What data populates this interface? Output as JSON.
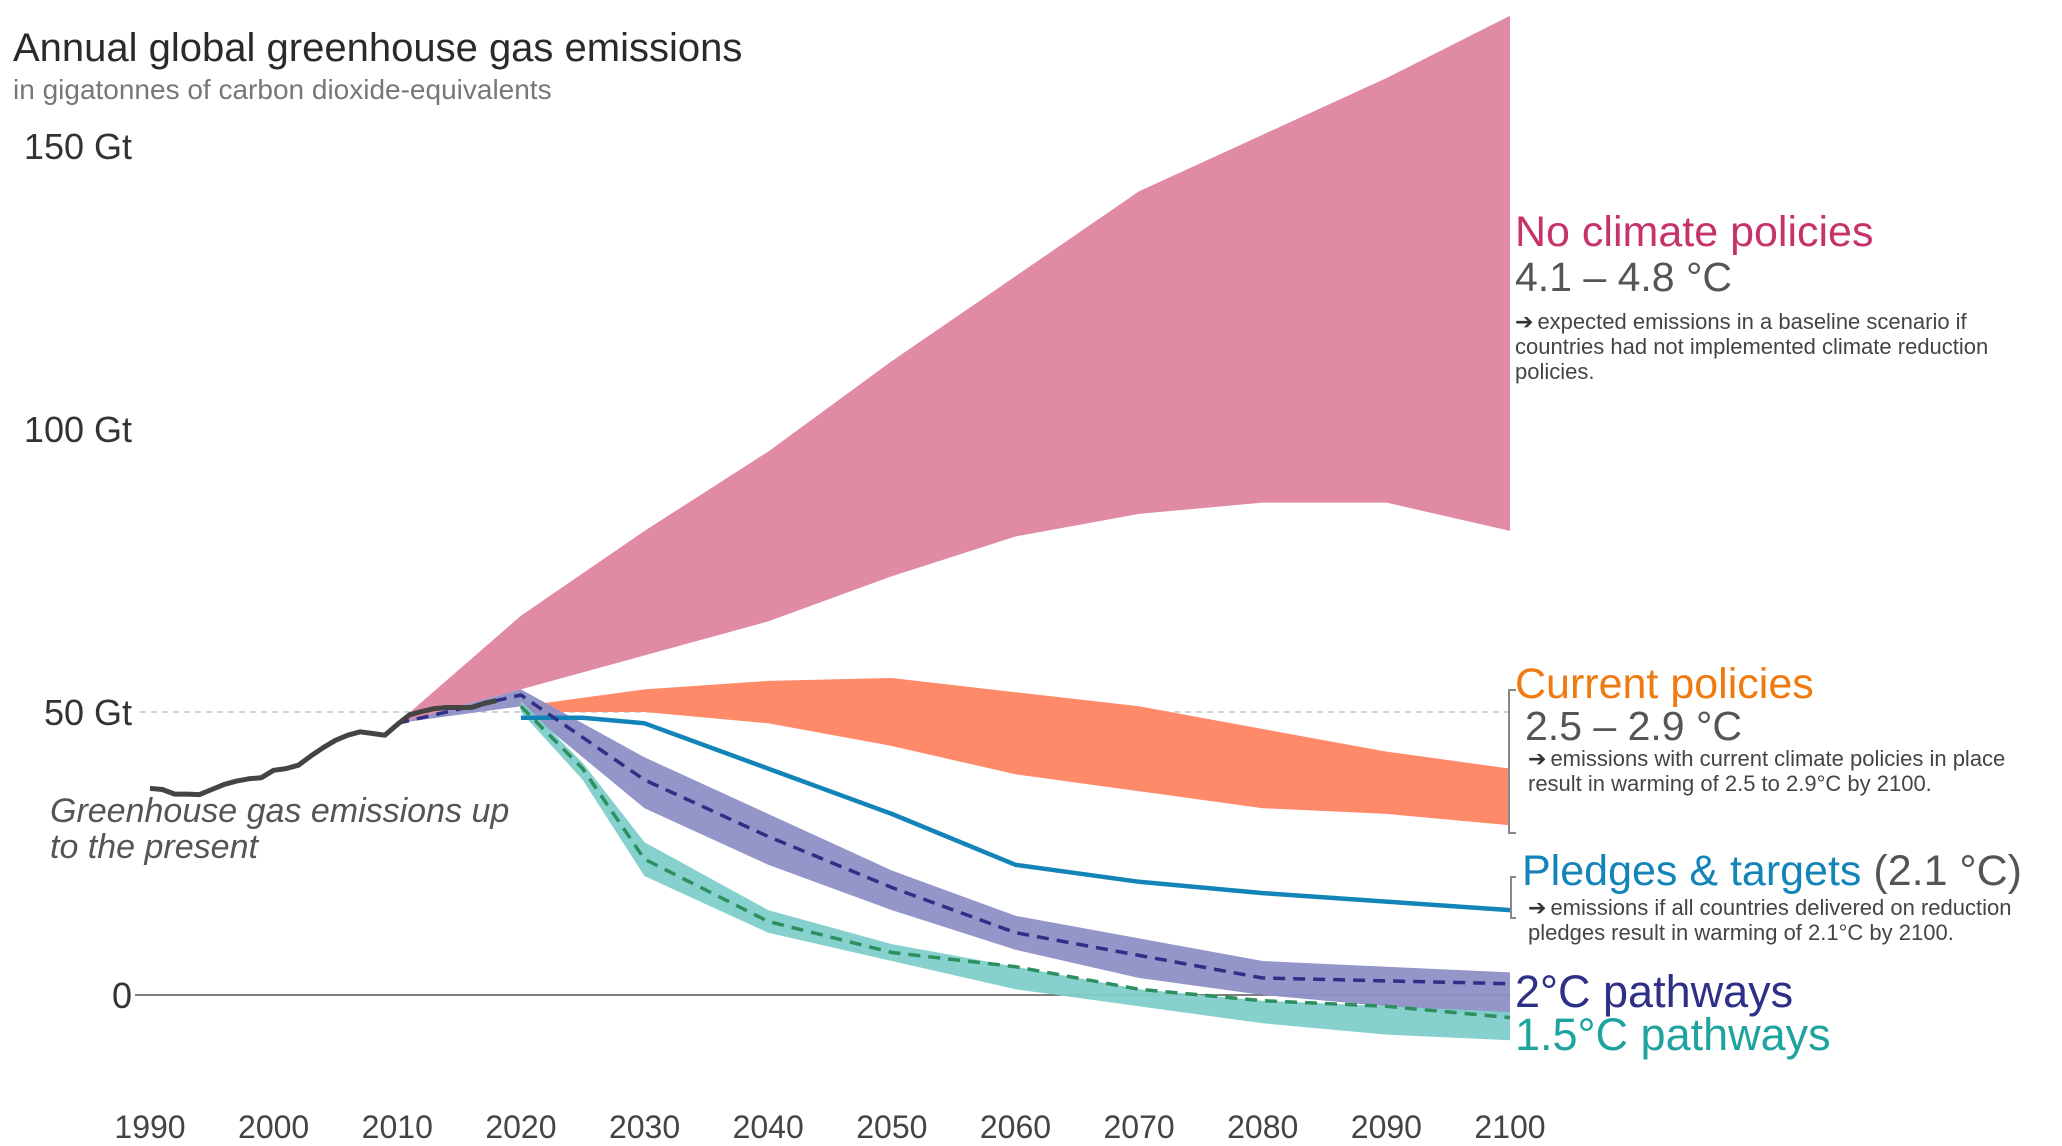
{
  "title": "Annual global greenhouse gas emissions",
  "subtitle": "in gigatonnes of carbon dioxide-equivalents",
  "present_note": "Greenhouse gas emissions up to the present",
  "colors": {
    "no_policies": "#e08aa4",
    "no_policies_text": "#c6336a",
    "current": "#ff8a6a",
    "current_text": "#ee7a10",
    "pledges": "#1384b8",
    "two_c_band": "#8e8fc6",
    "two_c_line": "#2e2f86",
    "one_five_band": "#7fcfca",
    "one_five_line": "#2e8f5e",
    "one_five_text": "#1fa39e",
    "history": "#444444"
  },
  "labels": {
    "no_policies": {
      "title": "No climate policies",
      "range": "4.1 – 4.8 °C",
      "note": "expected emissions in a baseline scenario if countries had not implemented climate reduction policies."
    },
    "current": {
      "title": "Current policies",
      "range": "2.5 – 2.9 °C",
      "note": "emissions with current climate policies in place result in warming of 2.5 to 2.9°C by 2100."
    },
    "pledges": {
      "title": "Pledges & targets",
      "range": "(2.1 °C)",
      "note": "emissions if all countries delivered on reduction pledges result in warming of 2.1°C by 2100."
    },
    "two_c": {
      "title": "2°C pathways"
    },
    "one_five": {
      "title": "1.5°C pathways"
    }
  },
  "chart_data": {
    "type": "area",
    "title": "Annual global greenhouse gas emissions",
    "subtitle": "in gigatonnes of carbon dioxide-equivalents",
    "x_ticks": [
      1990,
      2000,
      2010,
      2020,
      2030,
      2040,
      2050,
      2060,
      2070,
      2080,
      2090,
      2100
    ],
    "y_ticks": [
      {
        "value": 0,
        "label": "0"
      },
      {
        "value": 50,
        "label": "50 Gt"
      },
      {
        "value": 100,
        "label": "100 Gt"
      },
      {
        "value": 150,
        "label": "150 Gt"
      }
    ],
    "xlim": [
      1990,
      2100
    ],
    "ylim": [
      -14,
      173
    ],
    "history": {
      "x": [
        1990,
        1991,
        1992,
        1993,
        1994,
        1995,
        1996,
        1997,
        1998,
        1999,
        2000,
        2001,
        2002,
        2003,
        2004,
        2005,
        2006,
        2007,
        2008,
        2009,
        2010,
        2011,
        2012,
        2013,
        2014,
        2015,
        2016,
        2017,
        2018
      ],
      "y": [
        36.5,
        36.3,
        35.5,
        35.5,
        35.4,
        36.3,
        37.2,
        37.8,
        38.2,
        38.4,
        39.7,
        40.0,
        40.6,
        42.2,
        43.7,
        45.0,
        45.9,
        46.5,
        46.2,
        45.9,
        47.8,
        49.5,
        50.1,
        50.6,
        50.8,
        50.8,
        50.8,
        51.5,
        52.0
      ]
    },
    "series": [
      {
        "name": "No climate policies",
        "temperature": "4.1 – 4.8 °C",
        "x": [
          2010,
          2020,
          2030,
          2040,
          2050,
          2060,
          2070,
          2080,
          2090,
          2100
        ],
        "lower": [
          48,
          54,
          60,
          66,
          74,
          81,
          85,
          87,
          87,
          82
        ],
        "upper": [
          48,
          67,
          82,
          96,
          112,
          127,
          142,
          152,
          162,
          173
        ]
      },
      {
        "name": "Current policies",
        "temperature": "2.5 – 2.9 °C",
        "x": [
          2020,
          2030,
          2040,
          2050,
          2060,
          2070,
          2080,
          2090,
          2100
        ],
        "lower": [
          50,
          50,
          48,
          44,
          39,
          36,
          33,
          32,
          30
        ],
        "upper": [
          51,
          54,
          55.5,
          56,
          53.5,
          51,
          47,
          43,
          40
        ]
      },
      {
        "name": "Pledges & targets",
        "temperature": "(2.1 °C)",
        "x": [
          2020,
          2025,
          2030,
          2040,
          2050,
          2060,
          2070,
          2080,
          2090,
          2100
        ],
        "y": [
          49,
          49,
          48,
          40,
          32,
          23,
          20,
          18,
          16.5,
          15
        ]
      },
      {
        "name": "2°C pathways",
        "x": [
          2010,
          2020,
          2030,
          2040,
          2050,
          2060,
          2070,
          2080,
          2090,
          2100
        ],
        "lower": [
          48,
          51,
          33,
          23,
          15,
          8,
          3,
          0,
          -2,
          -4
        ],
        "upper": [
          48,
          54,
          42,
          32,
          22,
          14,
          10,
          6,
          5,
          4
        ],
        "median": [
          48,
          53,
          38,
          28,
          19,
          11,
          7,
          3,
          2.5,
          2
        ]
      },
      {
        "name": "1.5°C pathways",
        "x": [
          2020,
          2025,
          2030,
          2040,
          2050,
          2060,
          2070,
          2080,
          2090,
          2100
        ],
        "lower": [
          50,
          38,
          21,
          11,
          6,
          1,
          -2,
          -5,
          -7,
          -8
        ],
        "upper": [
          52,
          41,
          27,
          15,
          9,
          5,
          1,
          -1,
          -2,
          -3
        ],
        "median": [
          51,
          40,
          24,
          13,
          7.5,
          5,
          1,
          -1,
          -2,
          -4
        ]
      }
    ],
    "grid": false,
    "legend": "inline-right"
  }
}
